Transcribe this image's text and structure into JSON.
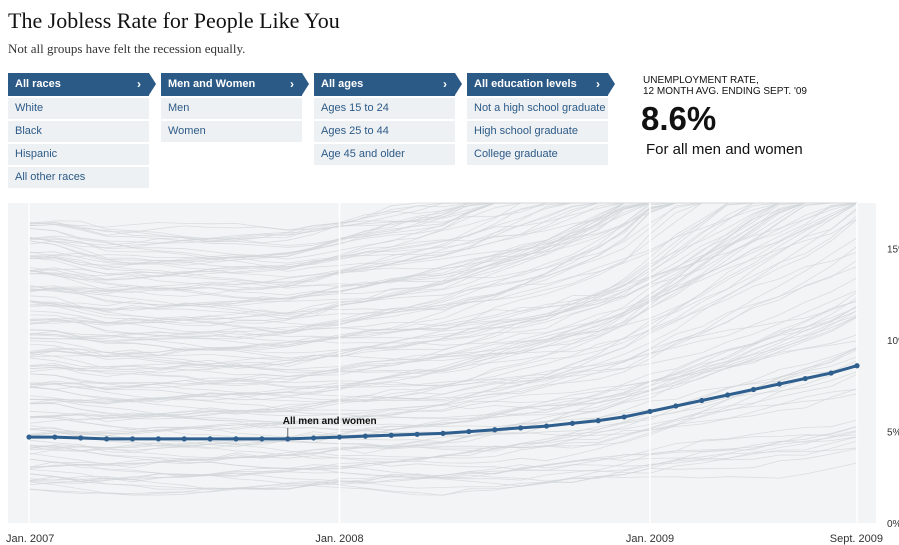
{
  "header": {
    "title": "The Jobless Rate for People Like You",
    "subtitle": "Not all groups have felt the recession equally."
  },
  "filters": [
    {
      "label": "All races",
      "options": [
        "White",
        "Black",
        "Hispanic",
        "All other races"
      ]
    },
    {
      "label": "Men and Women",
      "options": [
        "Men",
        "Women"
      ]
    },
    {
      "label": "All ages",
      "options": [
        "Ages 15 to 24",
        "Ages 25 to 44",
        "Age 45 and older"
      ]
    },
    {
      "label": "All education levels",
      "options": [
        "Not a high school graduate",
        "High school graduate",
        "College graduate"
      ]
    }
  ],
  "chevron": "›",
  "summary": {
    "label_line1": "UNEMPLOYMENT RATE,",
    "label_line2": "12 MONTH AVG. ENDING SEPT. '09",
    "value": "8.6%",
    "description": "For all men and women"
  },
  "colors": {
    "accent": "#2c5a87",
    "highlight_line": "#2e5f8e",
    "background_lines": "#d2d5d8",
    "panel": "#f3f4f5",
    "option_bg": "#eef1f3"
  },
  "chart_data": {
    "type": "line",
    "x": [
      "2007-01",
      "2007-02",
      "2007-03",
      "2007-04",
      "2007-05",
      "2007-06",
      "2007-07",
      "2007-08",
      "2007-09",
      "2007-10",
      "2007-11",
      "2007-12",
      "2008-01",
      "2008-02",
      "2008-03",
      "2008-04",
      "2008-05",
      "2008-06",
      "2008-07",
      "2008-08",
      "2008-09",
      "2008-10",
      "2008-11",
      "2008-12",
      "2009-01",
      "2009-02",
      "2009-03",
      "2009-04",
      "2009-05",
      "2009-06",
      "2009-07",
      "2009-08",
      "2009-09"
    ],
    "x_tick_labels": [
      {
        "x": "2007-01",
        "label": "Jan. 2007"
      },
      {
        "x": "2008-01",
        "label": "Jan. 2008"
      },
      {
        "x": "2009-01",
        "label": "Jan. 2009"
      },
      {
        "x": "2009-09",
        "label": "Sept. 2009"
      }
    ],
    "y_ticks": [
      {
        "value": 0,
        "label": "0%"
      },
      {
        "value": 5,
        "label": "5%"
      },
      {
        "value": 10,
        "label": "10%"
      },
      {
        "value": 15,
        "label": "15%"
      }
    ],
    "ylim": [
      0,
      17.5
    ],
    "grid": "vertical at Jan. 2007, Jan. 2008, Jan. 2009, Sept. 2009",
    "series": [
      {
        "name": "All men and women",
        "values": [
          4.7,
          4.7,
          4.65,
          4.6,
          4.6,
          4.6,
          4.6,
          4.6,
          4.6,
          4.6,
          4.6,
          4.65,
          4.7,
          4.75,
          4.8,
          4.85,
          4.9,
          5.0,
          5.1,
          5.2,
          5.3,
          5.45,
          5.6,
          5.8,
          6.1,
          6.4,
          6.7,
          7.0,
          7.3,
          7.6,
          7.9,
          8.2,
          8.6
        ]
      }
    ],
    "annotation": "All men and women"
  }
}
